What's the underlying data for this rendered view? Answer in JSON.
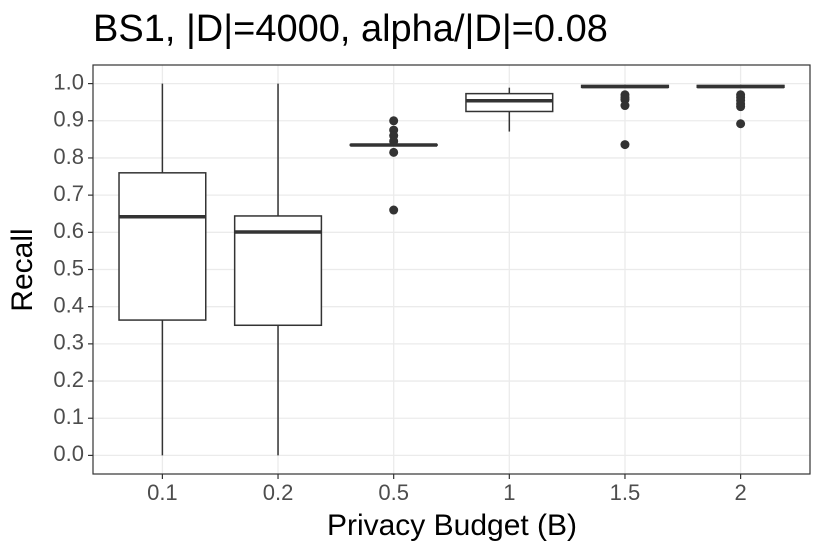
{
  "chart_data": {
    "type": "box",
    "title": "BS1, |D|=4000, alpha/|D|=0.08",
    "x_label": "Privacy Budget (B)",
    "y_label": "Recall",
    "categories": [
      "0.1",
      "0.2",
      "0.5",
      "1",
      "1.5",
      "2"
    ],
    "boxes": [
      {
        "whislo": 0.0,
        "q1": 0.364,
        "med": 0.642,
        "q3": 0.76,
        "whishi": 1.0,
        "fliers": []
      },
      {
        "whislo": 0.0,
        "q1": 0.35,
        "med": 0.601,
        "q3": 0.644,
        "whishi": 1.0,
        "fliers": []
      },
      {
        "whislo": 0.834,
        "q1": 0.834,
        "med": 0.835,
        "q3": 0.836,
        "whishi": 0.837,
        "fliers": [
          0.9,
          0.875,
          0.86,
          0.845,
          0.815,
          0.66
        ]
      },
      {
        "whislo": 0.871,
        "q1": 0.925,
        "med": 0.954,
        "q3": 0.973,
        "whishi": 0.989,
        "fliers": []
      },
      {
        "whislo": 0.988,
        "q1": 0.99,
        "med": 0.992,
        "q3": 0.995,
        "whishi": 0.997,
        "fliers": [
          0.97,
          0.963,
          0.957,
          0.941,
          0.836
        ]
      },
      {
        "whislo": 0.988,
        "q1": 0.99,
        "med": 0.992,
        "q3": 0.995,
        "whishi": 0.997,
        "fliers": [
          0.97,
          0.963,
          0.955,
          0.945,
          0.938,
          0.892
        ]
      }
    ],
    "color": "#333333",
    "ylim": [
      -0.05,
      1.05
    ],
    "yticks": [
      {
        "value": 0,
        "label": "0.0"
      },
      0.1,
      0.2,
      0.3,
      0.4,
      0.5,
      0.6,
      0.7,
      0.8,
      0.9,
      {
        "value": 1,
        "label": "1.0"
      }
    ],
    "grid": true
  }
}
